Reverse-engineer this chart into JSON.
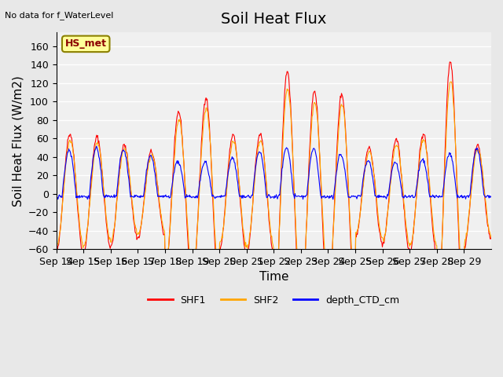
{
  "title": "Soil Heat Flux",
  "ylabel": "Soil Heat Flux (W/m2)",
  "xlabel": "Time",
  "top_left_text": "No data for f_WaterLevel",
  "annotation_box": "HS_met",
  "ylim": [
    -60,
    175
  ],
  "yticks": [
    -60,
    -40,
    -20,
    0,
    20,
    40,
    60,
    80,
    100,
    120,
    140,
    160
  ],
  "xtick_labels": [
    "Sep 14",
    "Sep 15",
    "Sep 16",
    "Sep 17",
    "Sep 18",
    "Sep 19",
    "Sep 20",
    "Sep 21",
    "Sep 22",
    "Sep 23",
    "Sep 24",
    "Sep 25",
    "Sep 26",
    "Sep 27",
    "Sep 28",
    "Sep 29"
  ],
  "colors": {
    "SHF1": "#FF0000",
    "SHF2": "#FFA500",
    "depth_CTD_cm": "#0000FF"
  },
  "legend_labels": [
    "SHF1",
    "SHF2",
    "depth_CTD_cm"
  ],
  "background_color": "#E8E8E8",
  "plot_bg_color": "#F0F0F0",
  "title_fontsize": 14,
  "axis_label_fontsize": 11,
  "tick_fontsize": 9
}
